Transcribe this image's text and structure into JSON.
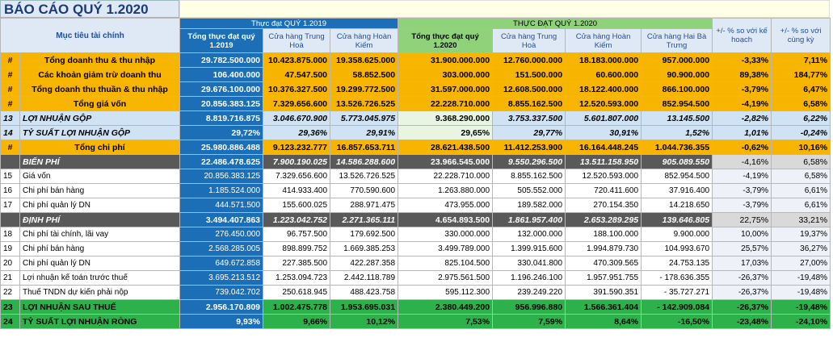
{
  "title": "BÁO CÁO QUÝ 1.2020",
  "header": {
    "label": "Mục tiêu tài chính",
    "group_2019": "Thực đạt QUÝ 1.2019",
    "group_2020": "THỰC ĐẠT QUÝ 1.2020",
    "cols": [
      "Tổng thực đạt quý 1.2019",
      "Cửa hàng Trung Hoà",
      "Cửa hàng Hoàn Kiếm",
      "Tổng thực đạt quý 1.2020",
      "Cửa hàng Trung Hoà",
      "Cửa hàng Hoàn Kiếm",
      "Cửa hàng Hai Bà Trưng",
      "+/- % so với kế hoạch",
      "+/- % so với cùng kỳ"
    ]
  },
  "rows": [
    {
      "style": "orange",
      "no": "#",
      "name": "Tổng doanh thu & thu nhập",
      "v": [
        "29.782.500.000",
        "10.423.875.000",
        "19.358.625.000",
        "31.900.000.000",
        "12.760.000.000",
        "18.183.000.000",
        "957.000.000",
        "-3,33%",
        "7,11%"
      ]
    },
    {
      "style": "orange",
      "no": "#",
      "name": "Các khoản giảm trừ doanh thu",
      "v": [
        "106.400.000",
        "47.547.500",
        "58.852.500",
        "303.000.000",
        "151.500.000",
        "60.600.000",
        "90.900.000",
        "89,38%",
        "184,77%"
      ]
    },
    {
      "style": "orange",
      "no": "#",
      "name": "Tổng doanh thu thuần & thu nhập",
      "v": [
        "29.676.100.000",
        "10.376.327.500",
        "19.299.772.500",
        "31.597.000.000",
        "12.608.500.000",
        "18.122.400.000",
        "866.100.000",
        "-3,79%",
        "6,47%"
      ]
    },
    {
      "style": "orange",
      "no": "#",
      "name": "Tổng giá vốn",
      "v": [
        "20.856.383.125",
        "7.329.656.600",
        "13.526.726.525",
        "22.228.710.000",
        "8.855.162.500",
        "12.520.593.000",
        "852.954.500",
        "-4,19%",
        "6,58%"
      ]
    },
    {
      "style": "lblue",
      "no": "13",
      "name": "LỢI NHUẬN GỘP",
      "v": [
        "8.819.716.875",
        "3.046.670.900",
        "5.773.045.975",
        "9.368.290.000",
        "3.753.337.500",
        "5.601.807.000",
        "13.145.500",
        "-2,82%",
        "6,22%"
      ]
    },
    {
      "style": "lblue",
      "no": "14",
      "name": "TỶ SUẤT LỢI NHUẬN GỘP",
      "v": [
        "29,72%",
        "29,36%",
        "29,91%",
        "29,65%",
        "29,77%",
        "30,91%",
        "1,52%",
        "1,01%",
        "-0,24%"
      ]
    },
    {
      "style": "orange",
      "no": "#",
      "name": "Tổng chi phí",
      "v": [
        "25.980.886.488",
        "9.123.232.777",
        "16.857.653.711",
        "28.621.438.500",
        "11.412.253.900",
        "16.164.448.245",
        "1.044.736.355",
        "-0,62%",
        "10,16%"
      ]
    },
    {
      "style": "gray",
      "no": "",
      "name": "BIẾN PHÍ",
      "v": [
        "22.486.478.625",
        "7.900.190.025",
        "14.586.288.600",
        "23.966.545.000",
        "9.550.296.500",
        "13.511.158.950",
        "905.089.550",
        "-4,16%",
        "6,58%"
      ]
    },
    {
      "style": "white",
      "no": "15",
      "name": "Giá vốn",
      "v": [
        "20.856.383.125",
        "7.329.656.600",
        "13.526.726.525",
        "22.228.710.000",
        "8.855.162.500",
        "12.520.593.000",
        "852.954.500",
        "-4,19%",
        "6,58%"
      ]
    },
    {
      "style": "white",
      "no": "16",
      "name": "Chi phí bán hàng",
      "v": [
        "1.185.524.000",
        "414.933.400",
        "770.590.600",
        "1.263.880.000",
        "505.552.000",
        "720.411.600",
        "37.916.400",
        "-3,79%",
        "6,61%"
      ]
    },
    {
      "style": "white",
      "no": "17",
      "name": "Chi phí quản lý DN",
      "v": [
        "444.571.500",
        "155.600.025",
        "288.971.475",
        "473.955.000",
        "189.582.000",
        "270.154.350",
        "14.218.650",
        "-3,79%",
        "6,61%"
      ]
    },
    {
      "style": "gray",
      "no": "",
      "name": "ĐỊNH PHÍ",
      "v": [
        "3.494.407.863",
        "1.223.042.752",
        "2.271.365.111",
        "4.654.893.500",
        "1.861.957.400",
        "2.653.289.295",
        "139.646.805",
        "22,75%",
        "33,21%"
      ]
    },
    {
      "style": "white",
      "no": "18",
      "name": "Chi phí tài chính, lãi vay",
      "v": [
        "276.450.000",
        "96.757.500",
        "179.692.500",
        "330.000.000",
        "132.000.000",
        "188.100.000",
        "9.900.000",
        "10,00%",
        "19,37%"
      ]
    },
    {
      "style": "white",
      "no": "19",
      "name": "Chi phí bán hàng",
      "v": [
        "2.568.285.005",
        "898.899.752",
        "1.669.385.253",
        "3.499.789.000",
        "1.399.915.600",
        "1.994.879.730",
        "104.993.670",
        "25,57%",
        "36,27%"
      ]
    },
    {
      "style": "white",
      "no": "20",
      "name": "Chi phí quản lý DN",
      "v": [
        "649.672.858",
        "227.385.500",
        "422.287.358",
        "825.104.500",
        "330.041.800",
        "470.309.565",
        "24.753.135",
        "17,03%",
        "27,00%"
      ]
    },
    {
      "style": "white",
      "no": "21",
      "name": "Lợi nhuận kế toán trước thuế",
      "v": [
        "3.695.213.512",
        "1.253.094.723",
        "2.442.118.789",
        "2.975.561.500",
        "1.196.246.100",
        "1.957.951.755",
        "- 178.636.355",
        "-26,37%",
        "-19,48%"
      ]
    },
    {
      "style": "white",
      "no": "22",
      "name": "Thuế TNDN dự kiến phải nộp",
      "v": [
        "739.042.702",
        "250.618.945",
        "488.423.758",
        "595.112.300",
        "239.249.220",
        "391.590.351",
        "- 35.727.271",
        "-26,37%",
        "-19,48%"
      ]
    },
    {
      "style": "green",
      "no": "23",
      "name": "LỢI NHUẬN SAU THUẾ",
      "v": [
        "2.956.170.809",
        "1.002.475.778",
        "1.953.695.031",
        "2.380.449.200",
        "956.996.880",
        "1.566.361.404",
        "- 142.909.084",
        "-26,37%",
        "-19,48%"
      ]
    },
    {
      "style": "green",
      "no": "24",
      "name": "TỶ SUẤT LỢI NHUẬN RÒNG",
      "v": [
        "9,93%",
        "9,66%",
        "10,12%",
        "7,53%",
        "7,59%",
        "8,64%",
        "-16,50%",
        "-23,48%",
        "-24,10%"
      ]
    }
  ]
}
